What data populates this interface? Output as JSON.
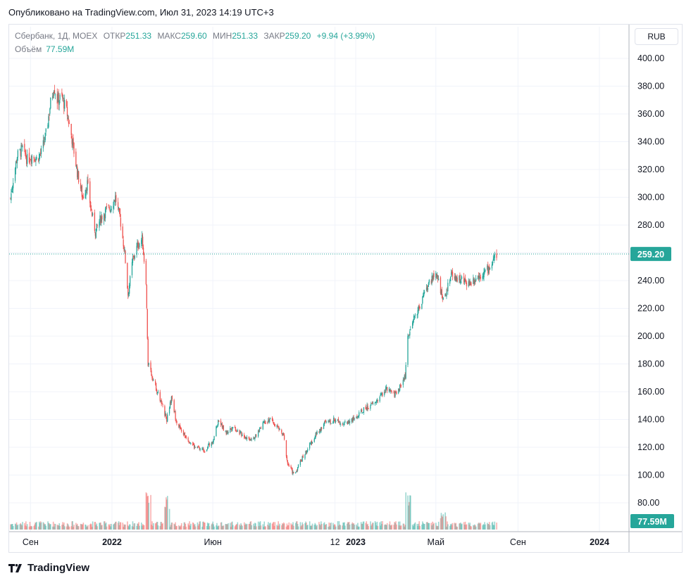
{
  "published": "Опубликовано на TradingView.com, Июл 31, 2023 14:19 UTC+3",
  "legend": {
    "symbol": "Сбербанк, 1Д, MOEX",
    "open_label": "ОТКР",
    "open": "251.33",
    "high_label": "МАКС",
    "high": "259.60",
    "low_label": "МИН",
    "low": "251.33",
    "close_label": "ЗАКР",
    "close": "259.20",
    "change": "+9.94 (+3.99%)",
    "volume_label": "Объём",
    "volume": "77.59M"
  },
  "currency_button": "RUB",
  "brand": "TradingView",
  "colors": {
    "up": "#26a69a",
    "down": "#ef5350",
    "grid": "#f0f3fa",
    "text": "#131722"
  },
  "chart_data": {
    "type": "candlestick",
    "title": "Сбербанк, 1Д, MOEX",
    "y_axis": {
      "min": 80,
      "max": 400,
      "ticks": [
        "400.00",
        "380.00",
        "360.00",
        "340.00",
        "320.00",
        "300.00",
        "280.00",
        "260.00",
        "240.00",
        "220.00",
        "200.00",
        "180.00",
        "160.00",
        "140.00",
        "120.00",
        "100.00",
        "80.00"
      ],
      "position": "right"
    },
    "x_axis": {
      "ticks": [
        "Сен",
        "2022",
        "Июн",
        "12",
        "2023",
        "Май",
        "Сен",
        "2024"
      ]
    },
    "last_price_label": "259.20",
    "last_volume_label": "77.59M",
    "last_price": 259.2,
    "series": [
      {
        "name": "price_path",
        "description": "daily close path",
        "points": [
          [
            "2021-07-31",
            292
          ],
          [
            "2021-08-05",
            310
          ],
          [
            "2021-08-12",
            330
          ],
          [
            "2021-08-20",
            335
          ],
          [
            "2021-08-27",
            327
          ],
          [
            "2021-09-03",
            330
          ],
          [
            "2021-09-10",
            328
          ],
          [
            "2021-09-17",
            332
          ],
          [
            "2021-09-24",
            345
          ],
          [
            "2021-10-01",
            368
          ],
          [
            "2021-10-06",
            380
          ],
          [
            "2021-10-11",
            370
          ],
          [
            "2021-10-18",
            372
          ],
          [
            "2021-10-25",
            362
          ],
          [
            "2021-11-01",
            345
          ],
          [
            "2021-11-10",
            318
          ],
          [
            "2021-11-18",
            300
          ],
          [
            "2021-11-25",
            310
          ],
          [
            "2021-12-01",
            290
          ],
          [
            "2021-12-07",
            275
          ],
          [
            "2021-12-15",
            285
          ],
          [
            "2021-12-22",
            290
          ],
          [
            "2021-12-30",
            293
          ],
          [
            "2022-01-06",
            300
          ],
          [
            "2022-01-13",
            285
          ],
          [
            "2022-01-20",
            260
          ],
          [
            "2022-01-25",
            230
          ],
          [
            "2022-02-01",
            255
          ],
          [
            "2022-02-08",
            265
          ],
          [
            "2022-02-15",
            270
          ],
          [
            "2022-02-21",
            240
          ],
          [
            "2022-02-24",
            180
          ],
          [
            "2022-03-24",
            140
          ],
          [
            "2022-03-31",
            155
          ],
          [
            "2022-04-07",
            140
          ],
          [
            "2022-04-14",
            132
          ],
          [
            "2022-04-25",
            126
          ],
          [
            "2022-05-05",
            120
          ],
          [
            "2022-05-20",
            118
          ],
          [
            "2022-06-01",
            125
          ],
          [
            "2022-06-10",
            140
          ],
          [
            "2022-06-20",
            130
          ],
          [
            "2022-07-01",
            135
          ],
          [
            "2022-07-12",
            130
          ],
          [
            "2022-07-25",
            126
          ],
          [
            "2022-08-05",
            128
          ],
          [
            "2022-08-15",
            138
          ],
          [
            "2022-08-25",
            140
          ],
          [
            "2022-09-05",
            135
          ],
          [
            "2022-09-15",
            128
          ],
          [
            "2022-09-21",
            108
          ],
          [
            "2022-10-01",
            100
          ],
          [
            "2022-10-10",
            110
          ],
          [
            "2022-10-20",
            118
          ],
          [
            "2022-11-01",
            128
          ],
          [
            "2022-11-15",
            137
          ],
          [
            "2022-12-01",
            140
          ],
          [
            "2022-12-15",
            137
          ],
          [
            "2023-01-01",
            141
          ],
          [
            "2023-01-15",
            148
          ],
          [
            "2023-01-30",
            152
          ],
          [
            "2023-02-15",
            162
          ],
          [
            "2023-02-28",
            158
          ],
          [
            "2023-03-10",
            165
          ],
          [
            "2023-03-16",
            172
          ],
          [
            "2023-03-20",
            200
          ],
          [
            "2023-03-31",
            215
          ],
          [
            "2023-04-10",
            225
          ],
          [
            "2023-04-20",
            238
          ],
          [
            "2023-04-28",
            245
          ],
          [
            "2023-05-05",
            240
          ],
          [
            "2023-05-10",
            228
          ],
          [
            "2023-05-17",
            232
          ],
          [
            "2023-05-24",
            245
          ],
          [
            "2023-06-01",
            242
          ],
          [
            "2023-06-10",
            240
          ],
          [
            "2023-06-20",
            238
          ],
          [
            "2023-06-30",
            242
          ],
          [
            "2023-07-10",
            245
          ],
          [
            "2023-07-20",
            249
          ],
          [
            "2023-07-31",
            259.2
          ]
        ]
      }
    ],
    "volume_spikes": [
      {
        "date": "2022-02-24",
        "value": 38
      },
      {
        "date": "2022-03-24",
        "value": 30
      },
      {
        "date": "2023-03-21",
        "value": 34
      },
      {
        "date": "2023-05-12",
        "value": 16
      }
    ]
  }
}
